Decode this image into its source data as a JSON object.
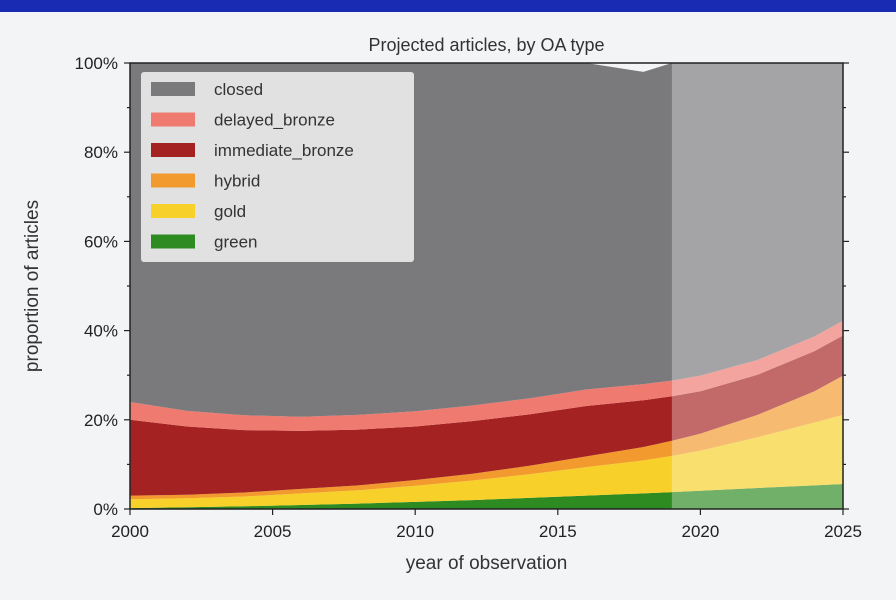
{
  "chart_data": {
    "type": "area",
    "title": "Projected articles, by OA type",
    "xlabel": "year of observation",
    "ylabel": "proportion of articles",
    "xlim": [
      2000,
      2025
    ],
    "ylim": [
      0,
      100
    ],
    "x_ticks": [
      "2000",
      "2005",
      "2010",
      "2015",
      "2020",
      "2025"
    ],
    "y_ticks": [
      "0%",
      "20%",
      "40%",
      "60%",
      "80%",
      "100%"
    ],
    "projection_start_year": 2019,
    "legend_position": "top-left",
    "x": [
      2000,
      2002,
      2004,
      2006,
      2008,
      2010,
      2012,
      2014,
      2016,
      2018,
      2019,
      2020,
      2022,
      2024,
      2025
    ],
    "series": [
      {
        "name": "green",
        "color": "#2e8b22",
        "values": [
          0.2,
          0.4,
          0.6,
          0.9,
          1.2,
          1.6,
          2.0,
          2.5,
          3.0,
          3.5,
          3.8,
          4.1,
          4.7,
          5.3,
          5.6
        ]
      },
      {
        "name": "gold",
        "color": "#f7d02a",
        "values": [
          2.0,
          2.0,
          2.2,
          2.6,
          3.0,
          3.6,
          4.4,
          5.3,
          6.4,
          7.4,
          8.1,
          9.0,
          11.4,
          14.1,
          15.5
        ]
      },
      {
        "name": "hybrid",
        "color": "#f29a2e",
        "values": [
          0.8,
          0.8,
          0.9,
          1.0,
          1.1,
          1.3,
          1.5,
          1.9,
          2.4,
          3.0,
          3.4,
          3.8,
          5.0,
          7.0,
          8.8
        ]
      },
      {
        "name": "immediate_bronze",
        "color": "#a52222",
        "values": [
          17.0,
          15.3,
          14.0,
          13.0,
          12.5,
          12.0,
          11.8,
          11.5,
          11.3,
          10.5,
          10.0,
          9.5,
          9.0,
          9.0,
          9.0
        ]
      },
      {
        "name": "delayed_bronze",
        "color": "#ee7a70",
        "values": [
          4.0,
          3.5,
          3.3,
          3.2,
          3.3,
          3.4,
          3.5,
          3.6,
          3.7,
          3.6,
          3.5,
          3.5,
          3.3,
          3.3,
          3.3
        ]
      },
      {
        "name": "closed",
        "color": "#7a7a7c",
        "values": [
          76.0,
          78.0,
          79.0,
          79.3,
          78.9,
          78.1,
          76.8,
          75.2,
          73.2,
          70.0,
          71.2,
          70.1,
          66.6,
          61.3,
          57.8
        ]
      }
    ]
  }
}
